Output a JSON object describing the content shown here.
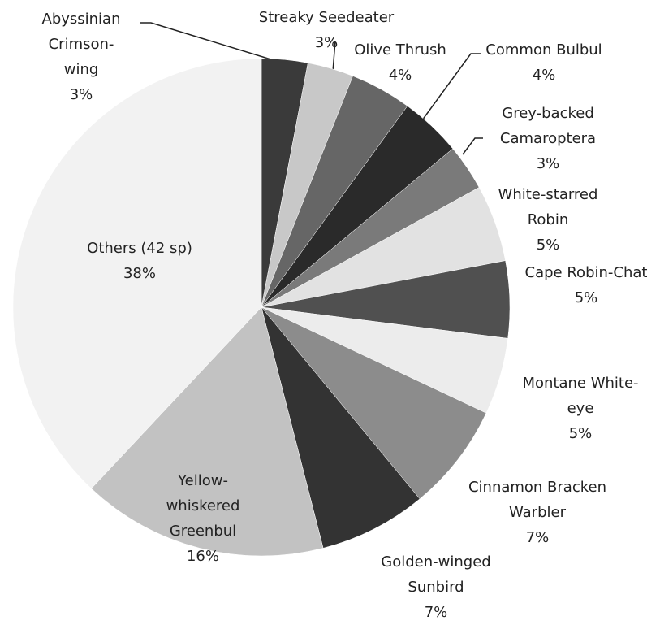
{
  "chart_data": {
    "type": "pie",
    "categories": [
      "Abyssinian Crimson-wing",
      "Streaky Seedeater",
      "Olive Thrush",
      "Common Bulbul",
      "Grey-backed Camaroptera",
      "White-starred Robin",
      "Cape Robin-Chat",
      "Montane White-eye",
      "Cinnamon Bracken Warbler",
      "Golden-winged Sunbird",
      "Yellow-whiskered Greenbul",
      "Others (42 sp)"
    ],
    "values": [
      3,
      3,
      4,
      4,
      3,
      5,
      5,
      5,
      7,
      7,
      16,
      38
    ],
    "value_labels": [
      "3%",
      "3%",
      "4%",
      "4%",
      "3%",
      "5%",
      "5%",
      "5%",
      "7%",
      "7%",
      "16%",
      "38%"
    ],
    "colors": [
      "#3a3a3a",
      "#c8c8c8",
      "#666666",
      "#2a2a2a",
      "#7a7a7a",
      "#e2e2e2",
      "#505050",
      "#ececec",
      "#8c8c8c",
      "#333333",
      "#c2c2c2",
      "#f2f2f2"
    ]
  }
}
